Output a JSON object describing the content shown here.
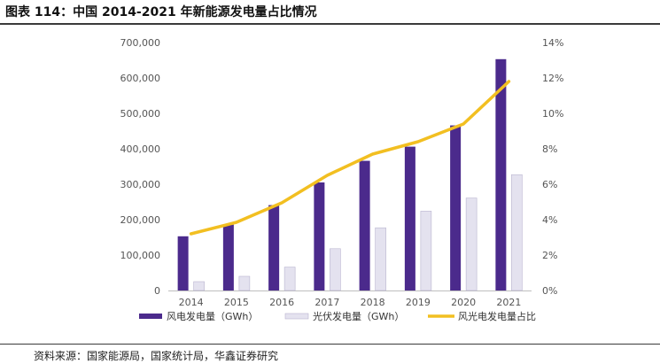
{
  "figure_title": "图表 114：中国 2014-2021 年新能源发电量占比情况",
  "source": "资料来源：国家能源局，国家统计局，华鑫证券研究",
  "colors": {
    "wind": "#4b2a8c",
    "solar": "#e4e2ef",
    "solar_border": "#b9b4cf",
    "share": "#f2bf21",
    "axis_text": "#555555"
  },
  "chart_data": {
    "type": "bar",
    "categories": [
      "2014",
      "2015",
      "2016",
      "2017",
      "2018",
      "2019",
      "2020",
      "2021"
    ],
    "series": [
      {
        "name": "风电发电量（GWh）",
        "type": "bar",
        "axis": "left",
        "values": [
          153000,
          186000,
          241000,
          305000,
          366000,
          406000,
          466000,
          653000
        ]
      },
      {
        "name": "光伏发电量（GWh）",
        "type": "bar",
        "axis": "left",
        "values": [
          25000,
          40000,
          66000,
          118000,
          177000,
          224000,
          261000,
          327000
        ]
      },
      {
        "name": "风光电发电量占比",
        "type": "line",
        "axis": "right",
        "values": [
          3.2,
          3.85,
          4.95,
          6.5,
          7.7,
          8.4,
          9.4,
          11.8
        ]
      }
    ],
    "y_left": {
      "min": 0,
      "max": 700000,
      "ticks": [
        "0",
        "100,000",
        "200,000",
        "300,000",
        "400,000",
        "500,000",
        "600,000",
        "700,000"
      ]
    },
    "y_right": {
      "min": 0,
      "max": 14,
      "ticks": [
        "0%",
        "2%",
        "4%",
        "6%",
        "8%",
        "10%",
        "12%",
        "14%"
      ]
    },
    "legend_position": "bottom",
    "grid": false
  }
}
